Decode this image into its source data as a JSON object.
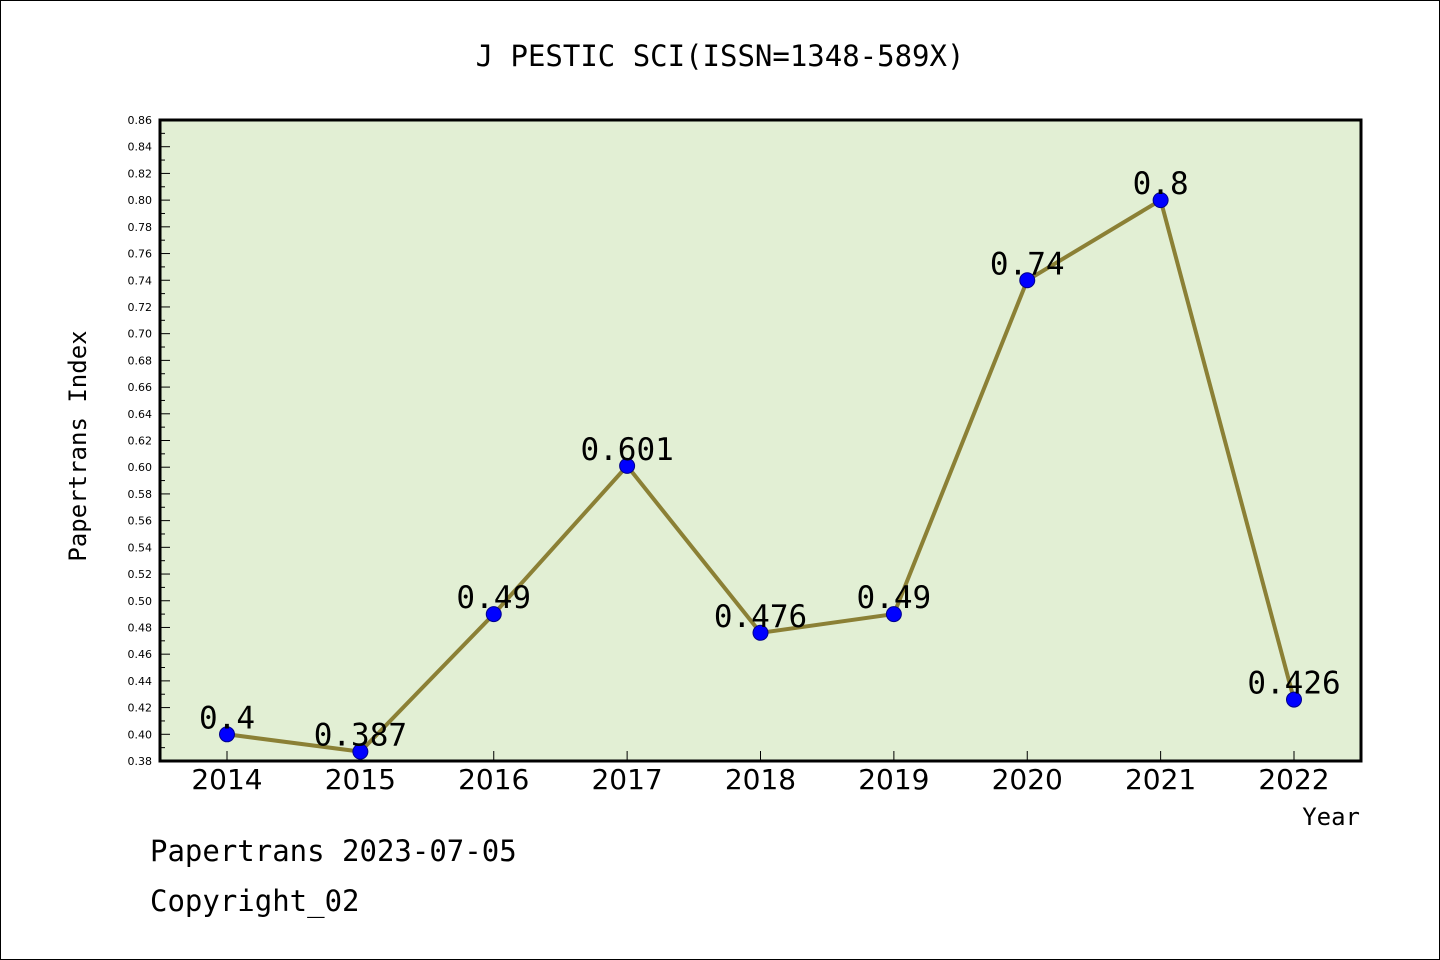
{
  "chart_data": {
    "type": "line",
    "title": "J PESTIC SCI(ISSN=1348-589X)",
    "xlabel": "Year",
    "ylabel": "Papertrans Index",
    "categories": [
      "2014",
      "2015",
      "2016",
      "2017",
      "2018",
      "2019",
      "2020",
      "2021",
      "2022"
    ],
    "values": [
      0.4,
      0.387,
      0.49,
      0.601,
      0.476,
      0.49,
      0.74,
      0.8,
      0.426
    ],
    "data_labels": [
      "0.4",
      "0.387",
      "0.49",
      "0.601",
      "0.476",
      "0.49",
      "0.74",
      "0.8",
      "0.426"
    ],
    "ylim": [
      0.38,
      0.86
    ],
    "y_ticks": [
      "0.38",
      "0.40",
      "0.42",
      "0.44",
      "0.46",
      "0.48",
      "0.50",
      "0.52",
      "0.54",
      "0.56",
      "0.58",
      "0.60",
      "0.62",
      "0.64",
      "0.66",
      "0.68",
      "0.70",
      "0.72",
      "0.74",
      "0.76",
      "0.78",
      "0.80",
      "0.82",
      "0.84",
      "0.86"
    ],
    "grid": false,
    "legend": "none",
    "colors": {
      "plot_background": "#e2efd4",
      "line": "#8b8035",
      "marker": "#0000ff"
    }
  },
  "footer": {
    "date_line": "Papertrans 2023-07-05",
    "copyright_line": "Copyright_02"
  }
}
